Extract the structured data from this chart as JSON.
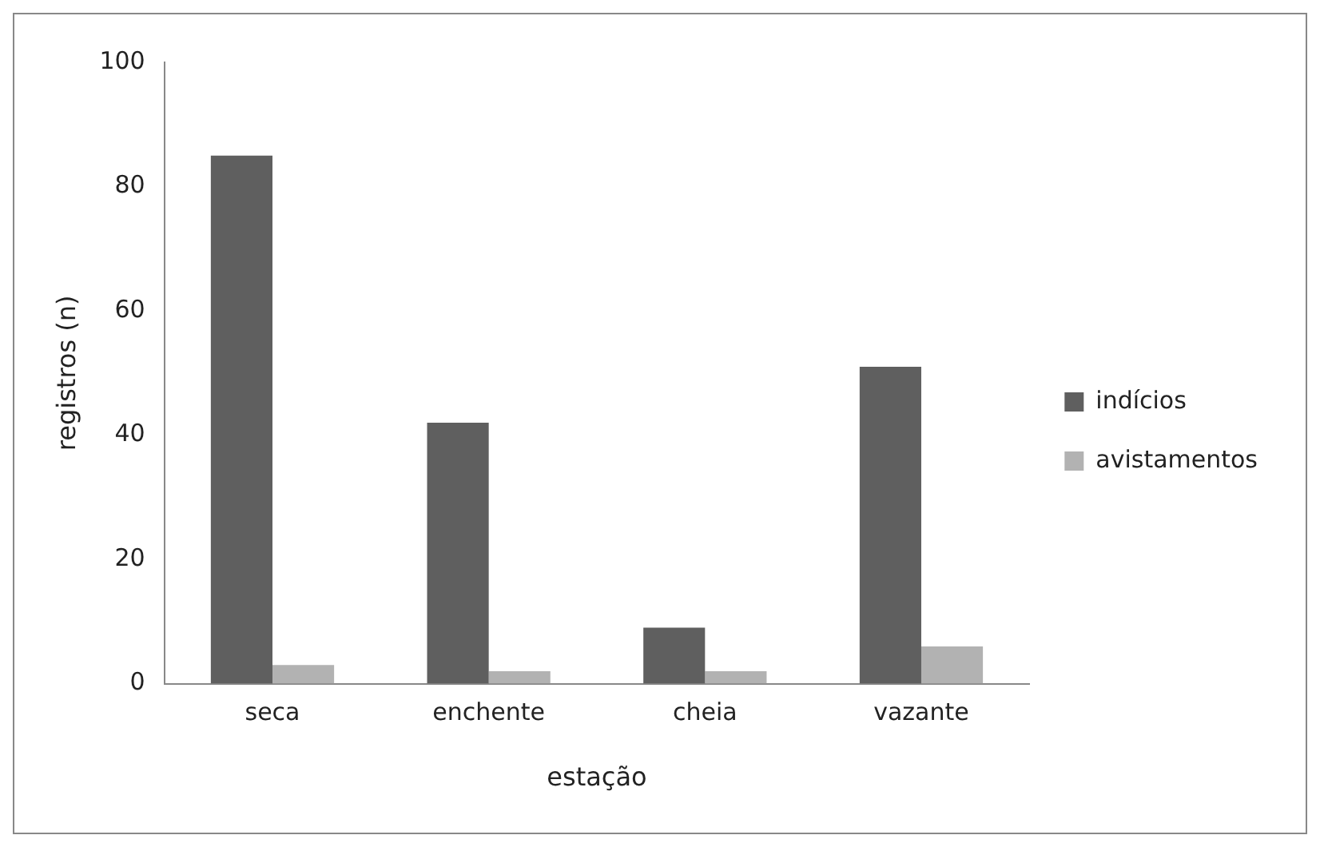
{
  "chart_data": {
    "type": "bar",
    "xlabel": "estação",
    "ylabel": "registros (n)",
    "categories": [
      "seca",
      "enchente",
      "cheia",
      "vazante"
    ],
    "series": [
      {
        "name": "indícios",
        "color": "#5f5f5f",
        "values": [
          85,
          42,
          9,
          51
        ]
      },
      {
        "name": "avistamentos",
        "color": "#b2b2b2",
        "values": [
          3,
          2,
          2,
          6
        ]
      }
    ],
    "ylim": [
      0,
      100
    ],
    "yticks": [
      0,
      20,
      40,
      60,
      80,
      100
    ],
    "grid": false,
    "legend": "right"
  }
}
